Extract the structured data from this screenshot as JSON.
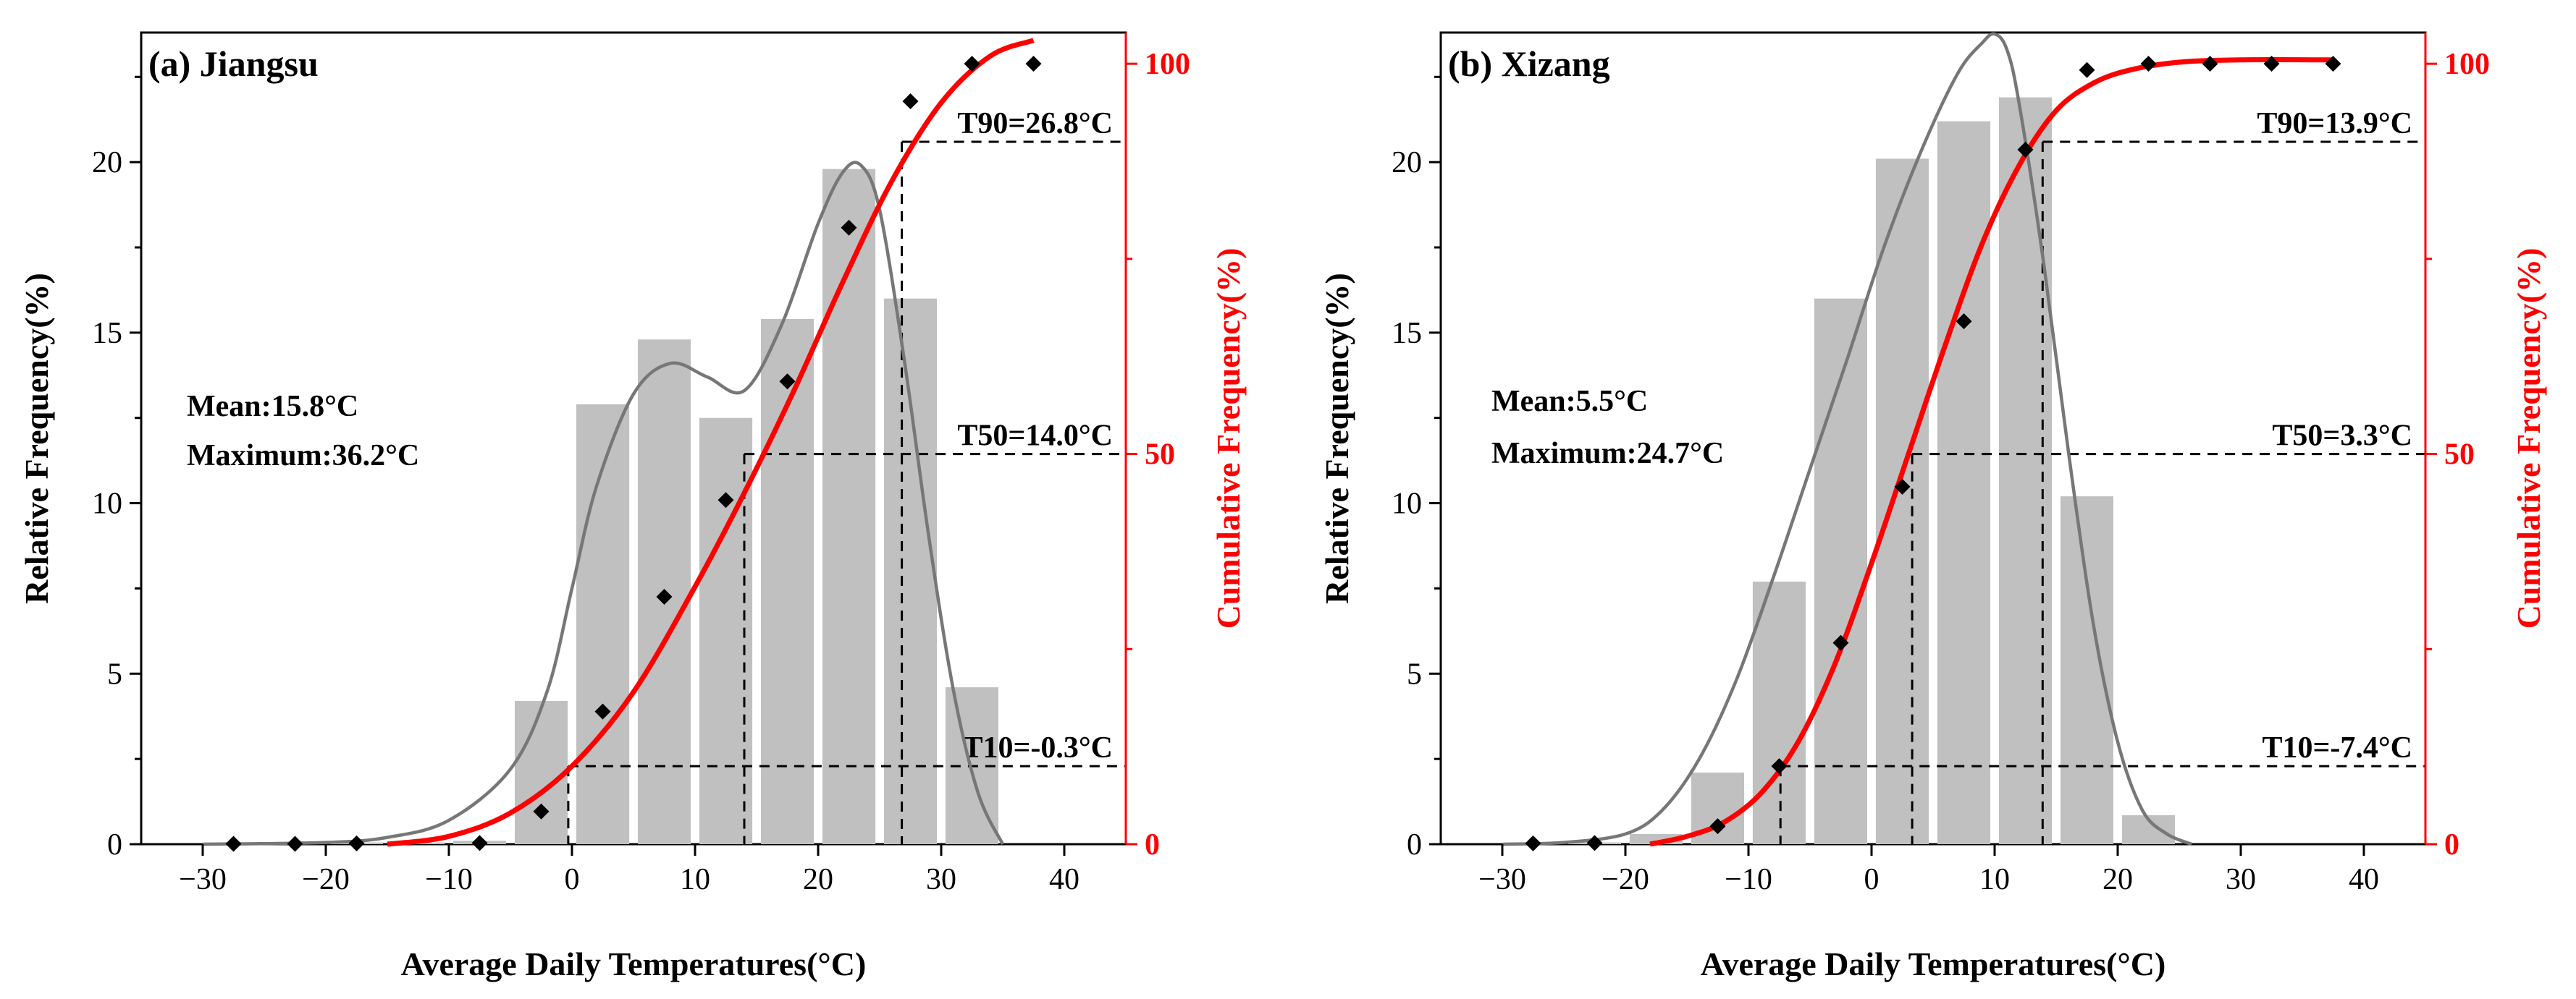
{
  "chart_data": [
    {
      "type": "bar",
      "panel_label": "(a) Jiangsu",
      "xlabel": "Average Daily Temperatures(°C)",
      "ylabel": "Relative Frequency(%)",
      "ylabel_right": "Cumulative Frequency(%)",
      "xlim": [
        -35,
        45
      ],
      "ylim": [
        0,
        23.8
      ],
      "ylim_right": [
        0,
        104
      ],
      "xticks": [
        -30,
        -20,
        -10,
        0,
        10,
        20,
        30,
        40
      ],
      "xtick_labels": [
        "−30",
        "−20",
        "−10",
        "0",
        "10",
        "20",
        "30",
        "40"
      ],
      "yticks": [
        0,
        5,
        10,
        15,
        20
      ],
      "yticks_right": [
        0,
        50,
        100
      ],
      "bars": {
        "name": "Relative Frequency",
        "color": "#c0c0c0",
        "centers": [
          -27.5,
          -22.5,
          -17.5,
          -12.5,
          -7.5,
          -2.5,
          2.5,
          7.5,
          12.5,
          17.5,
          22.5,
          27.5,
          32.5
        ],
        "values": [
          0.02,
          0.02,
          0.05,
          0.05,
          0.1,
          4.2,
          12.9,
          14.8,
          12.5,
          15.4,
          19.8,
          16.0,
          4.6
        ]
      },
      "density_curve": {
        "name": "Relative frequency fit",
        "color": "#777777",
        "x": [
          -30,
          -20,
          -15,
          -10,
          -5,
          -2,
          0,
          2,
          5,
          8,
          11,
          14,
          17,
          20,
          22,
          23.5,
          25,
          27,
          29,
          31,
          33,
          35
        ],
        "y": [
          0,
          0.05,
          0.2,
          0.7,
          2.2,
          4.5,
          7.5,
          10.5,
          13.2,
          14.1,
          13.7,
          13.3,
          15.2,
          18.2,
          19.7,
          19.9,
          18.6,
          14.2,
          9.0,
          4.5,
          1.5,
          0
        ]
      },
      "cumulative_points": {
        "name": "Cumulative Frequency",
        "color": "#000000",
        "x": [
          -27.5,
          -22.5,
          -17.5,
          -7.5,
          -2.5,
          2.5,
          7.5,
          12.5,
          17.5,
          22.5,
          27.5,
          32.5,
          37.5
        ],
        "y": [
          0.05,
          0.05,
          0.1,
          0.15,
          4.2,
          17.0,
          31.7,
          44.1,
          59.3,
          79.0,
          95.2,
          100,
          100
        ]
      },
      "cumulative_curve": {
        "name": "Cumulative fit",
        "color": "#ff0000",
        "x": [
          -15,
          -10,
          -5,
          0,
          5,
          10,
          14,
          18,
          22,
          26,
          30,
          34,
          37.5
        ],
        "y": [
          0,
          1.0,
          4.0,
          10.0,
          19.5,
          33.0,
          45.0,
          58.0,
          72.0,
          85.0,
          95.0,
          101.0,
          103.0
        ]
      },
      "reference_lines": [
        {
          "label": "T90=26.8°C",
          "x": 26.8,
          "y": 90
        },
        {
          "label": "T50=14.0°C",
          "x": 14.0,
          "y": 50
        },
        {
          "label": "T10=-0.3°C",
          "x": -0.3,
          "y": 10
        }
      ],
      "stats": {
        "mean": "Mean:15.8°C",
        "maximum": "Maximum:36.2°C"
      }
    },
    {
      "type": "bar",
      "panel_label": "(b) Xizang",
      "xlabel": "Average Daily Temperatures(°C)",
      "ylabel": "Relative Frequency(%)",
      "ylabel_right": "Cumulative Frequency(%)",
      "xlim": [
        -35,
        45
      ],
      "ylim": [
        0,
        23.8
      ],
      "ylim_right": [
        0,
        104
      ],
      "xticks": [
        -30,
        -20,
        -10,
        0,
        10,
        20,
        30,
        40
      ],
      "xtick_labels": [
        "−30",
        "−20",
        "−10",
        "0",
        "10",
        "20",
        "30",
        "40"
      ],
      "yticks": [
        0,
        5,
        10,
        15,
        20
      ],
      "yticks_right": [
        0,
        50,
        100
      ],
      "bars": {
        "name": "Relative Frequency",
        "color": "#c0c0c0",
        "centers": [
          -27.5,
          -22.5,
          -17.5,
          -12.5,
          -7.5,
          -2.5,
          2.5,
          7.5,
          12.5,
          17.5,
          22.5
        ],
        "values": [
          0.02,
          0.05,
          0.3,
          2.1,
          7.7,
          16.0,
          20.1,
          21.2,
          21.9,
          10.2,
          0.85
        ]
      },
      "density_curve": {
        "name": "Relative frequency fit",
        "color": "#777777",
        "x": [
          -30,
          -25,
          -20,
          -17,
          -14,
          -11,
          -8,
          -5,
          -2,
          1,
          4,
          7,
          9,
          10,
          11,
          12,
          14,
          16,
          18,
          20,
          22,
          24,
          26
        ],
        "y": [
          0,
          0.05,
          0.3,
          1.0,
          2.5,
          4.8,
          7.8,
          11.0,
          14.2,
          17.5,
          20.3,
          22.6,
          23.5,
          23.8,
          23.3,
          21.7,
          17.0,
          11.5,
          6.5,
          3.0,
          1.0,
          0.3,
          0
        ]
      },
      "cumulative_points": {
        "name": "Cumulative Frequency",
        "color": "#000000",
        "x": [
          -27.5,
          -22.5,
          -12.5,
          -7.5,
          -2.5,
          2.5,
          7.5,
          12.5,
          17.5,
          22.5,
          27.5,
          32.5,
          37.5
        ],
        "y": [
          0.1,
          0.15,
          2.3,
          10.0,
          25.8,
          45.8,
          67.0,
          89.0,
          99.2,
          100,
          100,
          100,
          100
        ]
      },
      "cumulative_curve": {
        "name": "Cumulative fit",
        "color": "#ff0000",
        "x": [
          -18,
          -15,
          -12,
          -9,
          -6,
          -3,
          0,
          3,
          6,
          9,
          12,
          15,
          18,
          21,
          25,
          30,
          37.5
        ],
        "y": [
          0,
          1.0,
          2.8,
          6.5,
          13.0,
          23.0,
          36.0,
          50.0,
          64.0,
          77.0,
          87.0,
          94.0,
          97.5,
          99.2,
          100.2,
          100.5,
          100.5
        ]
      },
      "reference_lines": [
        {
          "label": "T90=13.9°C",
          "x": 13.9,
          "y": 90
        },
        {
          "label": "T50=3.3°C",
          "x": 3.3,
          "y": 50
        },
        {
          "label": "T10=-7.4°C",
          "x": -7.4,
          "y": 10
        }
      ],
      "stats": {
        "mean": "Mean:5.5°C",
        "maximum": "Maximum:24.7°C"
      }
    }
  ]
}
